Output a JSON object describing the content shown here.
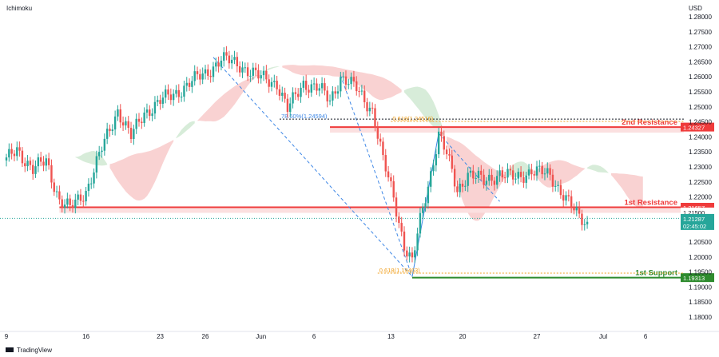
{
  "header": {
    "indicator": "Ichimoku",
    "currency": "USD"
  },
  "footer": {
    "brand": "TradingView"
  },
  "colors": {
    "up": "#26a69a",
    "down": "#ef5350",
    "cloud_bear": "#f9d2d2",
    "cloud_bull": "#d7ecd9",
    "resistance": "#ef3b3b",
    "support": "#2e8b2e",
    "fib_blue": "#3f88e6",
    "fib_orange": "#f0a020",
    "current": "#26a69a"
  },
  "chart_data": {
    "type": "candlestick",
    "y_range": [
      1.175,
      1.282
    ],
    "y_ticks": [
      "1.28000",
      "1.27500",
      "1.27000",
      "1.26500",
      "1.26000",
      "1.25500",
      "1.25000",
      "1.24500",
      "1.24000",
      "1.23500",
      "1.23000",
      "1.22500",
      "1.22000",
      "1.21500",
      "1.20500",
      "1.20000",
      "1.19500",
      "1.19000",
      "1.18500",
      "1.18000"
    ],
    "x_ticks": [
      {
        "label": "9",
        "i": 0
      },
      {
        "label": "16",
        "i": 30
      },
      {
        "label": "23",
        "i": 58
      },
      {
        "label": "26",
        "i": 75
      },
      {
        "label": "Jun",
        "i": 96
      },
      {
        "label": "6",
        "i": 116
      },
      {
        "label": "13",
        "i": 145
      },
      {
        "label": "20",
        "i": 172
      },
      {
        "label": "27",
        "i": 200
      },
      {
        "label": "Jul",
        "i": 225
      },
      {
        "label": "6",
        "i": 241
      }
    ],
    "n_candles": 220,
    "anchors": [
      [
        0,
        1.232
      ],
      [
        4,
        1.236
      ],
      [
        10,
        1.229
      ],
      [
        15,
        1.232
      ],
      [
        20,
        1.219
      ],
      [
        24,
        1.216
      ],
      [
        30,
        1.222
      ],
      [
        36,
        1.236
      ],
      [
        42,
        1.249
      ],
      [
        47,
        1.24
      ],
      [
        52,
        1.248
      ],
      [
        58,
        1.252
      ],
      [
        63,
        1.254
      ],
      [
        69,
        1.258
      ],
      [
        75,
        1.261
      ],
      [
        81,
        1.266
      ],
      [
        88,
        1.264
      ],
      [
        95,
        1.26
      ],
      [
        102,
        1.258
      ],
      [
        106,
        1.249
      ],
      [
        112,
        1.258
      ],
      [
        118,
        1.256
      ],
      [
        122,
        1.252
      ],
      [
        126,
        1.26
      ],
      [
        132,
        1.256
      ],
      [
        138,
        1.249
      ],
      [
        142,
        1.232
      ],
      [
        146,
        1.22
      ],
      [
        150,
        1.204
      ],
      [
        153,
        1.198
      ],
      [
        156,
        1.212
      ],
      [
        160,
        1.228
      ],
      [
        163,
        1.241
      ],
      [
        166,
        1.234
      ],
      [
        170,
        1.222
      ],
      [
        174,
        1.228
      ],
      [
        180,
        1.225
      ],
      [
        186,
        1.228
      ],
      [
        192,
        1.226
      ],
      [
        198,
        1.229
      ],
      [
        205,
        1.227
      ],
      [
        210,
        1.221
      ],
      [
        215,
        1.214
      ],
      [
        219,
        1.211
      ]
    ],
    "levels": [
      {
        "name": "2nd Resistance",
        "value": 1.24327,
        "label": "1.24327"
      },
      {
        "name": "1st Resistance",
        "value": 1.21657,
        "label": "1.21657"
      },
      {
        "name": "1st Support",
        "value": 1.19313,
        "label": "1.19313"
      }
    ],
    "fib_labels": [
      {
        "text": "78.60%(1.24594)",
        "value": 1.24594,
        "color": "blue"
      },
      {
        "text": "0.618(1.24516)",
        "value": 1.24516,
        "color": "orange"
      },
      {
        "text": "0.618(1.19463)",
        "value": 1.19463,
        "color": "orange"
      }
    ],
    "price_tags": [
      {
        "text": "1.21500",
        "value": 1.215
      },
      {
        "text": "1.21287",
        "value": 1.21287,
        "sub": "02:45:02"
      }
    ],
    "current_price": 1.21287
  }
}
